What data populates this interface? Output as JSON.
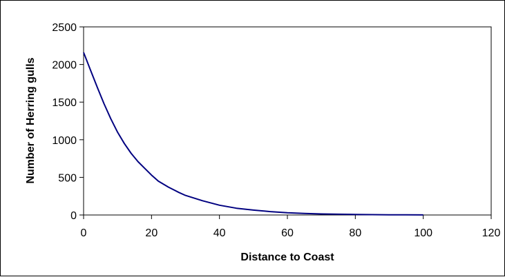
{
  "chart_data": {
    "type": "line",
    "title": "",
    "xlabel": "Distance to Coast",
    "ylabel": "Number of Herring gulls",
    "xlim": [
      0,
      120
    ],
    "ylim": [
      0,
      2500
    ],
    "xticks": [
      0,
      20,
      40,
      60,
      80,
      100,
      120
    ],
    "yticks": [
      0,
      500,
      1000,
      1500,
      2000,
      2500
    ],
    "grid": false,
    "legend": "none",
    "series": [
      {
        "color": "#000080",
        "x": [
          0,
          2,
          4,
          6,
          8,
          10,
          12,
          14,
          16,
          18,
          20,
          22,
          25,
          28,
          30,
          35,
          40,
          45,
          50,
          55,
          60,
          65,
          70,
          75,
          80,
          85,
          90,
          95,
          100
        ],
        "y": [
          2160,
          1930,
          1700,
          1480,
          1280,
          1100,
          950,
          820,
          710,
          620,
          530,
          450,
          370,
          300,
          260,
          190,
          130,
          90,
          65,
          45,
          30,
          21,
          14,
          10,
          7,
          5,
          3,
          2,
          1
        ]
      }
    ]
  }
}
